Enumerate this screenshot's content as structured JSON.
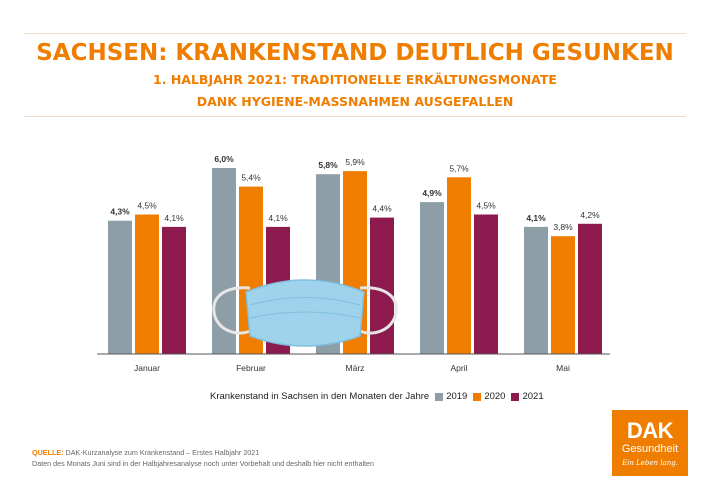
{
  "header": {
    "title": "SACHSEN: KRANKENSTAND DEUTLICH GESUNKEN",
    "subtitle_line1": "1. HALBJAHR 2021: TRADITIONELLE ERKÄLTUNGSMONATE",
    "subtitle_line2": "DANK HYGIENE-MASSNAHMEN AUSGEFALLEN"
  },
  "chart_data": {
    "type": "bar",
    "categories": [
      "Januar",
      "Februar",
      "März",
      "April",
      "Mai"
    ],
    "series": [
      {
        "name": "2019",
        "color": "#8e9ea6",
        "values": [
          4.3,
          6.0,
          5.8,
          4.9,
          4.1
        ],
        "labels": [
          "4,3%",
          "6,0%",
          "5,8%",
          "4,9%",
          "4,1%"
        ]
      },
      {
        "name": "2020",
        "color": "#ef7d00",
        "values": [
          4.5,
          5.4,
          5.9,
          5.7,
          3.8
        ],
        "labels": [
          "4,5%",
          "5,4%",
          "5,9%",
          "5,7%",
          "3,8%"
        ]
      },
      {
        "name": "2021",
        "color": "#8c1a4f",
        "values": [
          4.1,
          4.1,
          4.4,
          4.5,
          4.2
        ],
        "labels": [
          "4,1%",
          "4,1%",
          "4,4%",
          "4,5%",
          "4,2%"
        ]
      }
    ],
    "legend_title": "Krankenstand in Sachsen in den Monaten der Jahre",
    "legend_position": "bottom",
    "ylim": [
      0,
      6.0
    ],
    "grid": false
  },
  "source": {
    "label": "QUELLE:",
    "text": " DAK-Kurzanalyse zum Krankenstand – Erstes Halbjahr 2021",
    "note": "Daten des Monats Juni sind in der Halbjahresanalyse noch unter Vorbehalt und deshalb hier nicht enthalten"
  },
  "logo": {
    "brand": "DAK",
    "sub": "Gesundheit",
    "slogan": "Ein Leben lang."
  }
}
